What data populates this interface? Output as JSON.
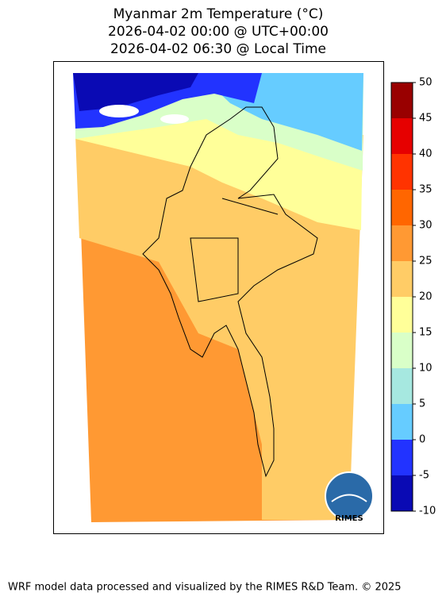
{
  "title": [
    "Myanmar 2m Temperature (°C)",
    "2026-04-02 00:00 @ UTC+00:00",
    "2026-04-02 06:30 @ Local Time"
  ],
  "colorbar": {
    "ticks": [
      -10,
      -5,
      0,
      5,
      10,
      15,
      20,
      25,
      30,
      35,
      40,
      45,
      50
    ],
    "colors": [
      "#0a0ab4",
      "#2233ff",
      "#66ccff",
      "#a6e8e0",
      "#d9ffc8",
      "#ffff99",
      "#ffcc66",
      "#ff9933",
      "#ff6600",
      "#ff3300",
      "#e60000",
      "#990000"
    ]
  },
  "logo": "RIMES",
  "footer": "WRF model data processed and visualized by the RIMES R&D Team. © 2025"
}
